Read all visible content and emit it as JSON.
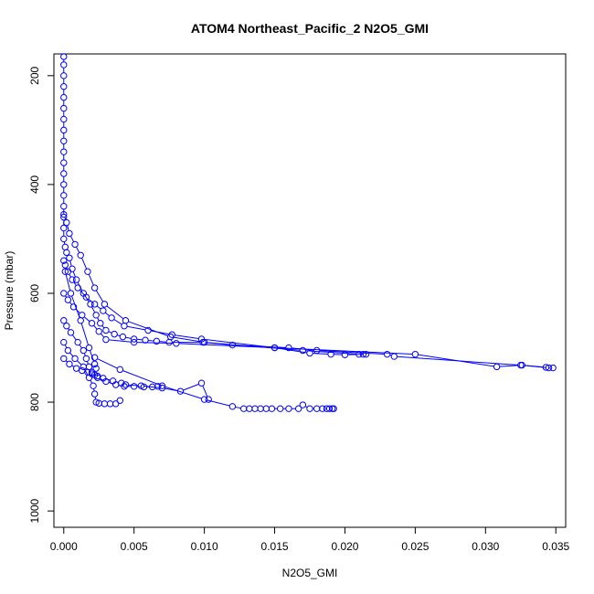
{
  "chart_data": {
    "type": "scatter",
    "title": "ATOM4 Northeast_Pacific_2 N2O5_GMI",
    "xlabel": "N2O5_GMI",
    "ylabel": "Pressure (mbar)",
    "xlim": [
      -0.0007,
      0.0357
    ],
    "ylim": [
      1030,
      160
    ],
    "y_reversed": true,
    "x_ticks": [
      "0.000",
      "0.005",
      "0.010",
      "0.015",
      "0.020",
      "0.025",
      "0.030",
      "0.035"
    ],
    "x_tick_values": [
      0,
      0.005,
      0.01,
      0.015,
      0.02,
      0.025,
      0.03,
      0.035
    ],
    "y_ticks": [
      "200",
      "400",
      "600",
      "800",
      "1000"
    ],
    "y_tick_values": [
      200,
      400,
      600,
      800,
      1000
    ],
    "color": "#0000ff",
    "series": [
      {
        "x": [
          0.0,
          0.0,
          0.0,
          0.0,
          0.0,
          0.0,
          0.0,
          0.0,
          0.0,
          0.0,
          0.0,
          0.0,
          0.0,
          0.0,
          0.0,
          0.0,
          0.0,
          0.0,
          0.0001,
          0.0002,
          0.0004,
          0.0006,
          0.0009,
          0.0014,
          0.0019,
          0.0023,
          0.0026,
          0.003,
          0.0036,
          0.0042,
          0.005,
          0.0058,
          0.0066,
          0.0075,
          0.0099,
          0.012,
          0.016,
          0.018,
          0.023,
          0.0235,
          0.0325,
          0.0345,
          0.0348
        ],
        "y": [
          165,
          180,
          200,
          220,
          240,
          260,
          280,
          300,
          320,
          340,
          360,
          380,
          400,
          420,
          440,
          460,
          480,
          500,
          515,
          525,
          535,
          555,
          575,
          600,
          620,
          640,
          655,
          668,
          675,
          680,
          684,
          686,
          688,
          690,
          690,
          695,
          700,
          705,
          712,
          716,
          732,
          737,
          737
        ]
      },
      {
        "x": [
          0.0,
          0.0001,
          0.0003,
          0.0006,
          0.001,
          0.0016,
          0.0022,
          0.0028,
          0.0034,
          0.0043,
          0.006,
          0.0077,
          0.0098,
          0.015,
          0.0175,
          0.019,
          0.02,
          0.0215
        ],
        "y": [
          540,
          548,
          560,
          575,
          590,
          607,
          620,
          632,
          645,
          660,
          668,
          676,
          684,
          700,
          710,
          712,
          713,
          712
        ]
      },
      {
        "x": [
          0.0,
          0.0002,
          0.0004,
          0.0008,
          0.0012,
          0.0017,
          0.0022,
          0.0029,
          0.0044,
          0.0076,
          0.01,
          0.017,
          0.021,
          0.0213
        ],
        "y": [
          455,
          470,
          490,
          510,
          530,
          560,
          590,
          620,
          650,
          680,
          690,
          705,
          712,
          712
        ]
      },
      {
        "x": [
          0.0,
          0.0003,
          0.0007,
          0.0013,
          0.002,
          0.0025,
          0.003,
          0.005,
          0.008,
          0.015,
          0.025,
          0.0308,
          0.0326,
          0.0343
        ],
        "y": [
          600,
          612,
          625,
          640,
          655,
          670,
          685,
          690,
          692,
          700,
          712,
          735,
          732,
          736
        ]
      },
      {
        "x": [
          0.0,
          0.0002,
          0.0005,
          0.001,
          0.0014,
          0.0016,
          0.0018,
          0.002,
          0.0024,
          0.003,
          0.0037,
          0.0043,
          0.005,
          0.0057,
          0.0063,
          0.0067
        ],
        "y": [
          650,
          660,
          672,
          690,
          705,
          720,
          735,
          745,
          755,
          762,
          768,
          771,
          771,
          772,
          772,
          771
        ]
      },
      {
        "x": [
          0.0,
          0.0004,
          0.0009,
          0.0013,
          0.0017,
          0.002,
          0.0022,
          0.0024,
          0.0028,
          0.0035,
          0.0041,
          0.0044,
          0.0055,
          0.007,
          0.0083,
          0.0098,
          0.0103
        ],
        "y": [
          720,
          730,
          738,
          742,
          745,
          748,
          750,
          752,
          756,
          761,
          765,
          768,
          770,
          774,
          780,
          765,
          795
        ]
      },
      {
        "x": [
          0.0,
          0.0003,
          0.0008,
          0.0014,
          0.0018,
          0.0021,
          0.0022,
          0.0023,
          0.0025,
          0.0029,
          0.0033,
          0.0037,
          0.004
        ],
        "y": [
          690,
          705,
          720,
          735,
          755,
          770,
          785,
          800,
          802,
          803,
          803,
          803,
          797
        ]
      },
      {
        "x": [
          0.0022,
          0.004,
          0.007,
          0.01,
          0.012,
          0.0128,
          0.0132,
          0.0136,
          0.014,
          0.0144,
          0.0148,
          0.0154,
          0.016,
          0.0167,
          0.017,
          0.0175,
          0.018,
          0.0184,
          0.0187,
          0.0189,
          0.0191,
          0.0192
        ],
        "y": [
          718,
          740,
          770,
          795,
          808,
          812,
          812,
          812,
          812,
          812,
          812,
          812,
          812,
          812,
          805,
          812,
          812,
          812,
          812,
          812,
          812,
          812
        ]
      },
      {
        "x": [
          0.0001,
          0.0005,
          0.0012,
          0.0018,
          0.0022,
          0.0023
        ],
        "y": [
          560,
          600,
          650,
          700,
          730,
          738
        ]
      }
    ]
  }
}
